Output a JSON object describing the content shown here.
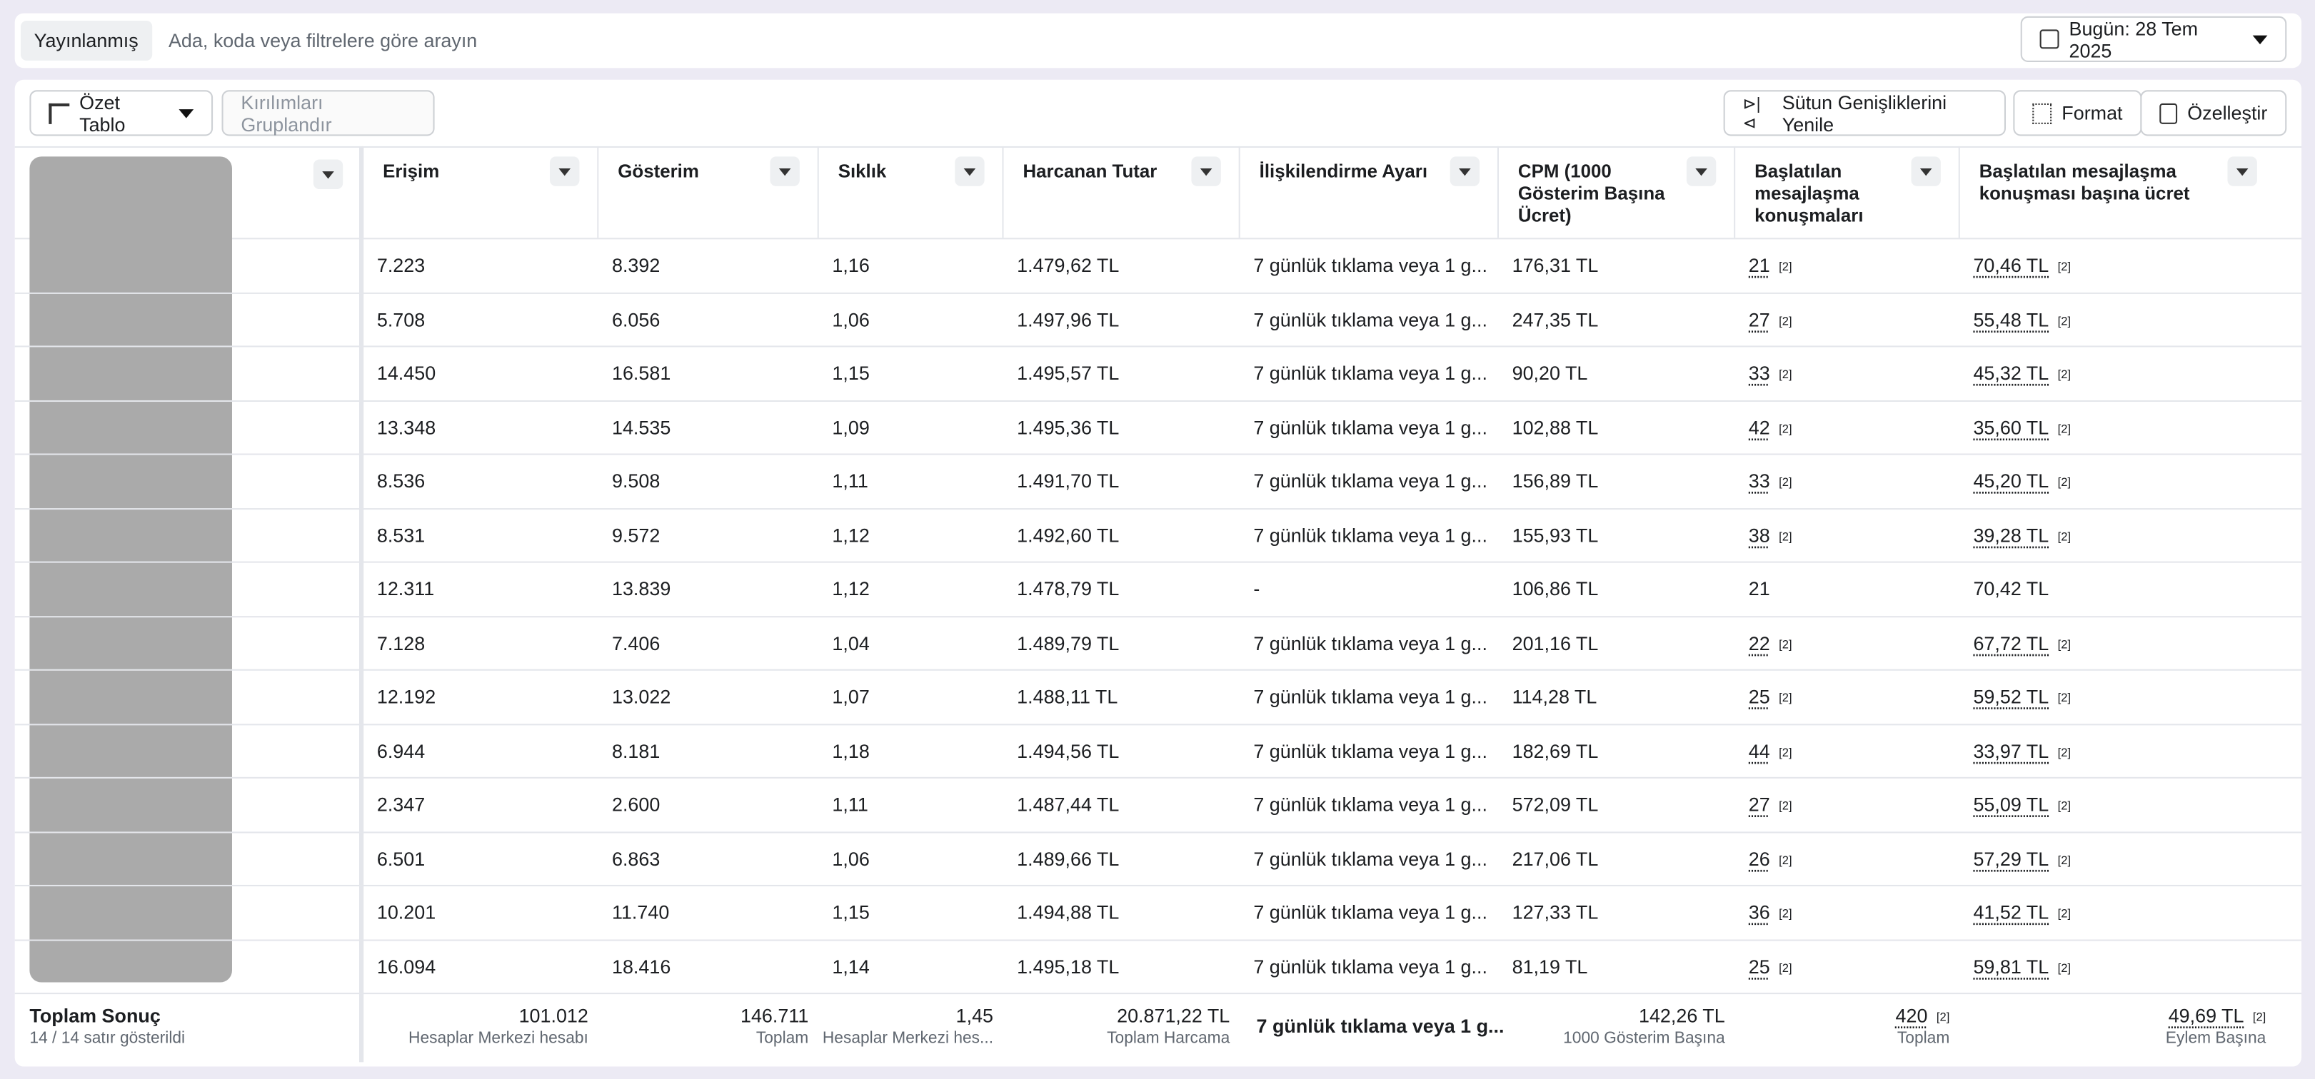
{
  "toolbar": {
    "status": "Yayınlanmış",
    "search_placeholder": "Ada, koda veya filtrelere göre arayın",
    "date": "Bugün: 28 Tem 2025"
  },
  "actions": {
    "pivot": "Özet Tablo",
    "group": "Kırılımları Gruplandır",
    "reset_widths": "Sütun Genişliklerini Yenile",
    "format": "Format",
    "customize": "Özelleştir"
  },
  "table": {
    "columns": [
      "Erişim",
      "Gösterim",
      "Sıklık",
      "Harcanan Tutar",
      "İlişkilendirme Ayarı",
      "CPM (1000 Gösterim Başına Ücret)",
      "Başlatılan mesajlaşma konuşmaları",
      "Başlatılan mesajlaşma konuşması başına ücret"
    ],
    "rows": [
      {
        "values": [
          "7.223",
          "8.392",
          "1,16",
          "1.479,62 TL",
          "7 günlük tıklama veya 1 g...",
          "176,31 TL",
          "21",
          "70,46 TL"
        ],
        "note": "[2]"
      },
      {
        "values": [
          "5.708",
          "6.056",
          "1,06",
          "1.497,96 TL",
          "7 günlük tıklama veya 1 g...",
          "247,35 TL",
          "27",
          "55,48 TL"
        ],
        "note": "[2]"
      },
      {
        "values": [
          "14.450",
          "16.581",
          "1,15",
          "1.495,57 TL",
          "7 günlük tıklama veya 1 g...",
          "90,20 TL",
          "33",
          "45,32 TL"
        ],
        "note": "[2]"
      },
      {
        "values": [
          "13.348",
          "14.535",
          "1,09",
          "1.495,36 TL",
          "7 günlük tıklama veya 1 g...",
          "102,88 TL",
          "42",
          "35,60 TL"
        ],
        "note": "[2]"
      },
      {
        "values": [
          "8.536",
          "9.508",
          "1,11",
          "1.491,70 TL",
          "7 günlük tıklama veya 1 g...",
          "156,89 TL",
          "33",
          "45,20 TL"
        ],
        "note": "[2]"
      },
      {
        "values": [
          "8.531",
          "9.572",
          "1,12",
          "1.492,60 TL",
          "7 günlük tıklama veya 1 g...",
          "155,93 TL",
          "38",
          "39,28 TL"
        ],
        "note": "[2]"
      },
      {
        "values": [
          "12.311",
          "13.839",
          "1,12",
          "1.478,79 TL",
          "-",
          "106,86 TL",
          "21",
          "70,42 TL"
        ]
      },
      {
        "values": [
          "7.128",
          "7.406",
          "1,04",
          "1.489,79 TL",
          "7 günlük tıklama veya 1 g...",
          "201,16 TL",
          "22",
          "67,72 TL"
        ],
        "note": "[2]"
      },
      {
        "values": [
          "12.192",
          "13.022",
          "1,07",
          "1.488,11 TL",
          "7 günlük tıklama veya 1 g...",
          "114,28 TL",
          "25",
          "59,52 TL"
        ],
        "note": "[2]"
      },
      {
        "values": [
          "6.944",
          "8.181",
          "1,18",
          "1.494,56 TL",
          "7 günlük tıklama veya 1 g...",
          "182,69 TL",
          "44",
          "33,97 TL"
        ],
        "note": "[2]"
      },
      {
        "values": [
          "2.347",
          "2.600",
          "1,11",
          "1.487,44 TL",
          "7 günlük tıklama veya 1 g...",
          "572,09 TL",
          "27",
          "55,09 TL"
        ],
        "note": "[2]"
      },
      {
        "values": [
          "6.501",
          "6.863",
          "1,06",
          "1.489,66 TL",
          "7 günlük tıklama veya 1 g...",
          "217,06 TL",
          "26",
          "57,29 TL"
        ],
        "note": "[2]"
      },
      {
        "values": [
          "10.201",
          "11.740",
          "1,15",
          "1.494,88 TL",
          "7 günlük tıklama veya 1 g...",
          "127,33 TL",
          "36",
          "41,52 TL"
        ],
        "note": "[2]"
      },
      {
        "values": [
          "16.094",
          "18.416",
          "1,14",
          "1.495,18 TL",
          "7 günlük tıklama veya 1 g...",
          "81,19 TL",
          "25",
          "59,81 TL"
        ],
        "note": "[2]"
      }
    ],
    "total": {
      "label": "Toplam Sonuç",
      "shown": "14 / 14 satır gösterildi",
      "note": "[2]",
      "cells": [
        {
          "value": "101.012",
          "sub": "Hesaplar Merkezi hesabı"
        },
        {
          "value": "146.711",
          "sub": "Toplam"
        },
        {
          "value": "1,45",
          "sub": "Hesaplar Merkezi hes..."
        },
        {
          "value": "20.871,22 TL",
          "sub": "Toplam Harcama"
        },
        {
          "value": "7 günlük tıklama veya 1 g..."
        },
        {
          "value": "142,26 TL",
          "sub": "1000 Gösterim Başına"
        },
        {
          "value": "420",
          "sub": "Toplam"
        },
        {
          "value": "49,69 TL",
          "sub": "Eylem Başına"
        }
      ]
    }
  }
}
